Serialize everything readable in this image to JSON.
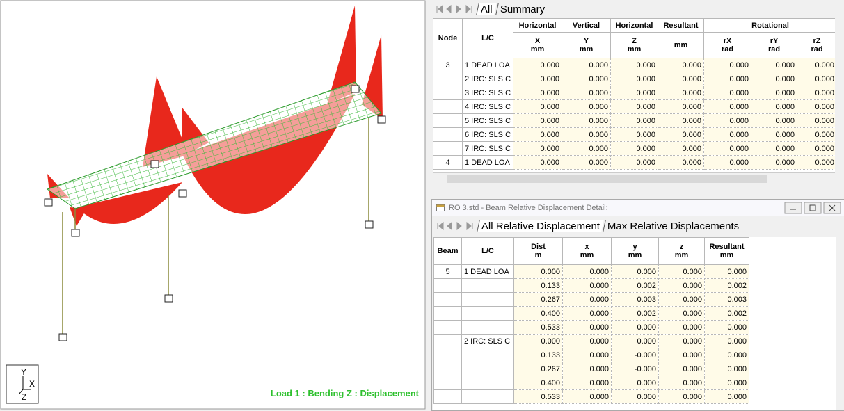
{
  "viewport": {
    "caption": "Load 1 : Bending Z : Displacement",
    "axes": {
      "y": "Y",
      "x": "X",
      "z": "Z"
    }
  },
  "summary_table": {
    "tabs": [
      "All",
      "Summary"
    ],
    "group_headers": [
      "Node",
      "L/C",
      "Horizontal",
      "Vertical",
      "Horizontal",
      "Resultant",
      "Rotational"
    ],
    "column_labels": [
      "X",
      "Y",
      "Z",
      "rX",
      "rY",
      "rZ"
    ],
    "units": [
      "mm",
      "mm",
      "mm",
      "mm",
      "rad",
      "rad",
      "rad"
    ],
    "rows": [
      [
        "3",
        "1 DEAD LOA",
        "0.000",
        "0.000",
        "0.000",
        "0.000",
        "0.000",
        "0.000",
        "0.000"
      ],
      [
        null,
        "2 IRC: SLS C",
        "0.000",
        "0.000",
        "0.000",
        "0.000",
        "0.000",
        "0.000",
        "0.000"
      ],
      [
        null,
        "3 IRC: SLS C",
        "0.000",
        "0.000",
        "0.000",
        "0.000",
        "0.000",
        "0.000",
        "0.000"
      ],
      [
        null,
        "4 IRC: SLS C",
        "0.000",
        "0.000",
        "0.000",
        "0.000",
        "0.000",
        "0.000",
        "0.000"
      ],
      [
        null,
        "5 IRC: SLS C",
        "0.000",
        "0.000",
        "0.000",
        "0.000",
        "0.000",
        "0.000",
        "0.000"
      ],
      [
        null,
        "6 IRC: SLS C",
        "0.000",
        "0.000",
        "0.000",
        "0.000",
        "0.000",
        "0.000",
        "0.000"
      ],
      [
        null,
        "7 IRC: SLS C",
        "0.000",
        "0.000",
        "0.000",
        "0.000",
        "0.000",
        "0.000",
        "0.000"
      ],
      [
        "4",
        "1 DEAD LOA",
        "0.000",
        "0.000",
        "0.000",
        "0.000",
        "0.000",
        "0.000",
        "0.000"
      ]
    ]
  },
  "detail_window": {
    "title": "RO 3.std - Beam Relative Displacement Detail:",
    "tabs": [
      "All Relative Displacement",
      "Max Relative Displacements"
    ],
    "headers": [
      "Beam",
      "L/C",
      "Dist",
      "x",
      "y",
      "z",
      "Resultant"
    ],
    "units": [
      "m",
      "mm",
      "mm",
      "mm",
      "mm"
    ],
    "rows": [
      [
        "5",
        "1 DEAD LOA",
        "0.000",
        "0.000",
        "0.000",
        "0.000",
        "0.000"
      ],
      [
        null,
        null,
        "0.133",
        "0.000",
        "0.002",
        "0.000",
        "0.002"
      ],
      [
        null,
        null,
        "0.267",
        "0.000",
        "0.003",
        "0.000",
        "0.003"
      ],
      [
        null,
        null,
        "0.400",
        "0.000",
        "0.002",
        "0.000",
        "0.002"
      ],
      [
        null,
        null,
        "0.533",
        "0.000",
        "0.000",
        "0.000",
        "0.000"
      ],
      [
        null,
        "2 IRC: SLS C",
        "0.000",
        "0.000",
        "0.000",
        "0.000",
        "0.000"
      ],
      [
        null,
        null,
        "0.133",
        "0.000",
        "-0.000",
        "0.000",
        "0.000"
      ],
      [
        null,
        null,
        "0.267",
        "0.000",
        "-0.000",
        "0.000",
        "0.000"
      ],
      [
        null,
        null,
        "0.400",
        "0.000",
        "0.000",
        "0.000",
        "0.000"
      ],
      [
        null,
        null,
        "0.533",
        "0.000",
        "0.000",
        "0.000",
        "0.000"
      ]
    ]
  }
}
